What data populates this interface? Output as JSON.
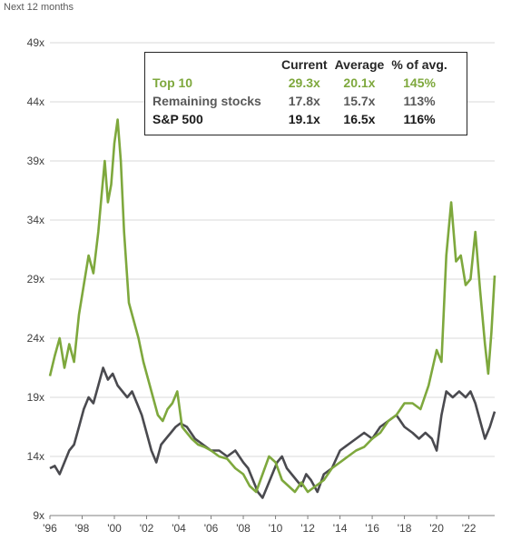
{
  "chart_data": {
    "type": "line",
    "subtitle": "Next 12 months",
    "title": "",
    "xlabel": "",
    "ylabel": "",
    "xlim": [
      1996,
      2023.6
    ],
    "ylim": [
      9,
      49
    ],
    "y_ticks": [
      9,
      14,
      19,
      24,
      29,
      34,
      39,
      44,
      49
    ],
    "y_tick_labels": [
      "9x",
      "14x",
      "19x",
      "24x",
      "29x",
      "34x",
      "39x",
      "44x",
      "49x"
    ],
    "x_ticks": [
      1996,
      1998,
      2000,
      2002,
      2004,
      2006,
      2008,
      2010,
      2012,
      2014,
      2016,
      2018,
      2020,
      2022
    ],
    "x_tick_labels": [
      "'96",
      "'98",
      "'00",
      "'02",
      "'04",
      "'06",
      "'08",
      "'10",
      "'12",
      "'14",
      "'16",
      "'18",
      "'20",
      "'22"
    ],
    "grid": "horizontal",
    "series": [
      {
        "name": "Top 10",
        "color": "#7ea83d",
        "x": [
          1996.0,
          1996.3,
          1996.6,
          1996.9,
          1997.2,
          1997.5,
          1997.8,
          1998.1,
          1998.4,
          1998.7,
          1999.0,
          1999.2,
          1999.4,
          1999.6,
          1999.8,
          2000.0,
          2000.2,
          2000.4,
          2000.6,
          2000.9,
          2001.2,
          2001.5,
          2001.8,
          2002.1,
          2002.4,
          2002.7,
          2003.0,
          2003.3,
          2003.6,
          2003.9,
          2004.2,
          2004.5,
          2004.8,
          2005.2,
          2005.6,
          2006.0,
          2006.5,
          2007.0,
          2007.5,
          2008.0,
          2008.4,
          2008.8,
          2009.2,
          2009.6,
          2010.0,
          2010.4,
          2010.8,
          2011.2,
          2011.6,
          2012.0,
          2012.5,
          2013.0,
          2013.5,
          2014.0,
          2014.5,
          2015.0,
          2015.5,
          2016.0,
          2016.5,
          2017.0,
          2017.5,
          2018.0,
          2018.5,
          2019.0,
          2019.5,
          2020.0,
          2020.3,
          2020.6,
          2020.9,
          2021.2,
          2021.5,
          2021.8,
          2022.1,
          2022.4,
          2022.7,
          2023.0,
          2023.2,
          2023.4,
          2023.6
        ],
        "values": [
          20.8,
          22.5,
          24.0,
          21.5,
          23.5,
          22.0,
          26.0,
          28.5,
          31.0,
          29.5,
          33.0,
          36.0,
          39.0,
          35.5,
          37.0,
          40.5,
          42.5,
          39.0,
          33.0,
          27.0,
          25.5,
          24.0,
          22.0,
          20.5,
          19.0,
          17.5,
          17.0,
          18.0,
          18.5,
          19.5,
          16.5,
          16.0,
          15.5,
          15.0,
          14.8,
          14.5,
          14.0,
          13.8,
          13.0,
          12.5,
          11.5,
          11.0,
          12.5,
          14.0,
          13.5,
          12.0,
          11.5,
          11.0,
          11.8,
          11.0,
          11.5,
          12.0,
          13.0,
          13.5,
          14.0,
          14.5,
          14.8,
          15.5,
          16.0,
          17.0,
          17.5,
          18.5,
          18.5,
          18.0,
          20.0,
          23.0,
          22.0,
          31.0,
          35.5,
          30.5,
          31.0,
          28.5,
          29.0,
          33.0,
          28.0,
          23.5,
          21.0,
          24.5,
          29.3
        ]
      },
      {
        "name": "Remaining stocks",
        "color": "#4a4a4f",
        "x": [
          1996.0,
          1996.3,
          1996.6,
          1996.9,
          1997.2,
          1997.5,
          1997.8,
          1998.1,
          1998.4,
          1998.7,
          1999.0,
          1999.3,
          1999.6,
          1999.9,
          2000.2,
          2000.5,
          2000.8,
          2001.1,
          2001.4,
          2001.7,
          2002.0,
          2002.3,
          2002.6,
          2002.9,
          2003.2,
          2003.5,
          2003.8,
          2004.1,
          2004.5,
          2005.0,
          2005.5,
          2006.0,
          2006.5,
          2007.0,
          2007.5,
          2008.0,
          2008.3,
          2008.6,
          2008.9,
          2009.2,
          2009.5,
          2009.8,
          2010.1,
          2010.4,
          2010.7,
          2011.0,
          2011.3,
          2011.6,
          2011.9,
          2012.2,
          2012.6,
          2013.0,
          2013.5,
          2014.0,
          2014.5,
          2015.0,
          2015.5,
          2016.0,
          2016.5,
          2017.0,
          2017.5,
          2018.0,
          2018.5,
          2018.9,
          2019.3,
          2019.7,
          2020.0,
          2020.3,
          2020.6,
          2021.0,
          2021.4,
          2021.8,
          2022.1,
          2022.4,
          2022.7,
          2023.0,
          2023.3,
          2023.6
        ],
        "values": [
          13.0,
          13.2,
          12.5,
          13.5,
          14.5,
          15.0,
          16.5,
          18.0,
          19.0,
          18.5,
          20.0,
          21.5,
          20.5,
          21.0,
          20.0,
          19.5,
          19.0,
          19.5,
          18.5,
          17.5,
          16.0,
          14.5,
          13.5,
          15.0,
          15.5,
          16.0,
          16.5,
          16.8,
          16.5,
          15.5,
          15.0,
          14.5,
          14.5,
          14.0,
          14.5,
          13.5,
          13.0,
          12.0,
          11.0,
          10.5,
          11.5,
          12.5,
          13.5,
          14.0,
          13.0,
          12.5,
          12.0,
          11.5,
          12.5,
          12.0,
          11.0,
          12.5,
          13.0,
          14.5,
          15.0,
          15.5,
          16.0,
          15.5,
          16.5,
          17.0,
          17.5,
          16.5,
          16.0,
          15.5,
          16.0,
          15.5,
          14.5,
          17.5,
          19.5,
          19.0,
          19.5,
          19.0,
          19.5,
          18.5,
          17.0,
          15.5,
          16.5,
          17.8
        ]
      },
      {
        "name": "S&P 500",
        "color": "#1a1a1a"
      }
    ],
    "table": {
      "headers": [
        "Current",
        "Average",
        "% of avg."
      ],
      "rows": [
        {
          "name": "Top 10",
          "current": "29.3x",
          "average": "20.1x",
          "pct": "145%"
        },
        {
          "name": "Remaining stocks",
          "current": "17.8x",
          "average": "15.7x",
          "pct": "113%"
        },
        {
          "name": "S&P 500",
          "current": "19.1x",
          "average": "16.5x",
          "pct": "116%"
        }
      ]
    }
  }
}
